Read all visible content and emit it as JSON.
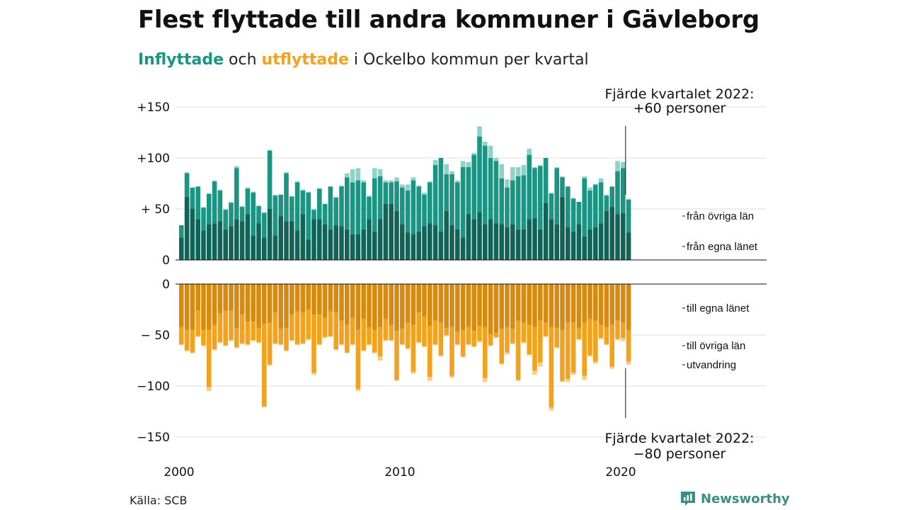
{
  "header": {
    "title": "Flest flyttade till andra kommuner i Gävleborg",
    "subtitle_in": "Inflyttade",
    "subtitle_mid": "och",
    "subtitle_out": "utflyttade",
    "subtitle_rest": "i Ockelbo kommun per kvartal"
  },
  "footer": {
    "source": "Källa: SCB",
    "brand": "Newsworthy"
  },
  "colors": {
    "in_same_county": "#0f6357",
    "in_other_county": "#1a9483",
    "in_immigration": "#8ed2c8",
    "out_same_county": "#d68a10",
    "out_other_county": "#f2a21c",
    "out_emigration": "#f7cd82"
  },
  "chart_data": {
    "type": "bar",
    "start_quarter": "2000 Q1",
    "x_ticks": [
      "2000",
      "2010",
      "2020"
    ],
    "y_ticks_top": [
      "+150",
      "+100",
      "+ 50",
      "0"
    ],
    "y_ticks_bottom": [
      "0",
      "− 50",
      "−100",
      "−150"
    ],
    "ylim_top": [
      0,
      150
    ],
    "ylim_bottom": [
      -150,
      0
    ],
    "top_annotation": {
      "line1": "Fjärde kvartalet 2022:",
      "line2": "+60 personer"
    },
    "bottom_annotation": {
      "line1": "Fjärde kvartalet 2022:",
      "line2": "−80 personer"
    },
    "series_labels": {
      "in_other_county": "från övriga län",
      "in_same_county": "från egna länet",
      "out_same_county": "till egna länet",
      "out_other_county": "till övriga län",
      "out_emigration": "utvandring"
    },
    "inflow_total": [
      34,
      86,
      71,
      72,
      52,
      65,
      78,
      69,
      50,
      57,
      92,
      53,
      71,
      67,
      53,
      47,
      108,
      64,
      64,
      86,
      63,
      77,
      69,
      67,
      50,
      70,
      55,
      72,
      62,
      73,
      85,
      89,
      90,
      78,
      63,
      90,
      89,
      78,
      78,
      81,
      74,
      74,
      81,
      73,
      66,
      77,
      98,
      100,
      94,
      87,
      78,
      97,
      96,
      105,
      131,
      116,
      112,
      100,
      94,
      79,
      91,
      91,
      93,
      109,
      91,
      93,
      100,
      66,
      91,
      82,
      72,
      61,
      57,
      82,
      71,
      74,
      80,
      64,
      72,
      97,
      96,
      60
    ],
    "inflow_other": [
      34,
      85,
      71,
      72,
      51,
      65,
      77,
      68,
      49,
      56,
      90,
      52,
      70,
      66,
      53,
      46,
      107,
      63,
      64,
      85,
      62,
      76,
      68,
      66,
      49,
      70,
      55,
      72,
      61,
      72,
      81,
      76,
      78,
      76,
      62,
      80,
      82,
      76,
      76,
      77,
      71,
      68,
      78,
      72,
      64,
      76,
      93,
      100,
      84,
      84,
      76,
      91,
      91,
      103,
      121,
      112,
      100,
      97,
      80,
      71,
      78,
      82,
      83,
      103,
      90,
      92,
      100,
      65,
      90,
      81,
      72,
      60,
      57,
      80,
      68,
      74,
      76,
      63,
      72,
      87,
      90,
      59
    ],
    "inflow_same": [
      22,
      62,
      50,
      40,
      29,
      35,
      36,
      38,
      30,
      33,
      40,
      38,
      45,
      24,
      36,
      22,
      50,
      24,
      43,
      38,
      38,
      29,
      45,
      20,
      40,
      40,
      35,
      30,
      34,
      33,
      30,
      25,
      25,
      30,
      40,
      28,
      40,
      55,
      55,
      48,
      35,
      27,
      25,
      28,
      33,
      36,
      34,
      28,
      48,
      34,
      30,
      22,
      45,
      40,
      47,
      35,
      40,
      36,
      35,
      32,
      35,
      30,
      30,
      40,
      41,
      30,
      56,
      40,
      35,
      62,
      32,
      28,
      35,
      23,
      30,
      32,
      36,
      48,
      52,
      45,
      46,
      27
    ],
    "outflow_total": [
      -60,
      -66,
      -68,
      -52,
      -61,
      -105,
      -65,
      -58,
      -61,
      -56,
      -63,
      -59,
      -60,
      -56,
      -58,
      -121,
      -80,
      -59,
      -60,
      -66,
      -56,
      -60,
      -59,
      -55,
      -89,
      -60,
      -53,
      -52,
      -65,
      -60,
      -68,
      -60,
      -105,
      -66,
      -60,
      -68,
      -75,
      -56,
      -56,
      -95,
      -60,
      -64,
      -88,
      -58,
      -62,
      -95,
      -60,
      -71,
      -51,
      -92,
      -60,
      -72,
      -60,
      -62,
      -57,
      -96,
      -61,
      -53,
      -79,
      -69,
      -59,
      -95,
      -58,
      -70,
      -89,
      -81,
      -52,
      -124,
      -63,
      -96,
      -96,
      -89,
      -55,
      -94,
      -71,
      -78,
      -54,
      -60,
      -83,
      -55,
      -56,
      -79
    ],
    "outflow_same": [
      -42,
      -45,
      -45,
      -26,
      -45,
      -45,
      -40,
      -29,
      -26,
      -26,
      -43,
      -30,
      -37,
      -37,
      -43,
      -39,
      -38,
      -28,
      -44,
      -43,
      -30,
      -27,
      -28,
      -25,
      -30,
      -30,
      -33,
      -27,
      -28,
      -36,
      -40,
      -33,
      -45,
      -34,
      -42,
      -45,
      -42,
      -34,
      -40,
      -46,
      -44,
      -38,
      -40,
      -28,
      -32,
      -41,
      -36,
      -38,
      -43,
      -42,
      -47,
      -45,
      -42,
      -46,
      -41,
      -42,
      -49,
      -48,
      -44,
      -42,
      -44,
      -36,
      -38,
      -40,
      -42,
      -36,
      -38,
      -42,
      -43,
      -45,
      -38,
      -38,
      -43,
      -38,
      -34,
      -36,
      -40,
      -42,
      -40,
      -36,
      -38,
      -45
    ],
    "outflow_emigration": [
      -1,
      -1,
      -1,
      -1,
      -1,
      -4,
      -1,
      -1,
      -1,
      -1,
      -1,
      -1,
      -1,
      -1,
      -1,
      -1,
      -1,
      -1,
      -1,
      -1,
      -1,
      -1,
      -1,
      -1,
      -2,
      -1,
      -1,
      -1,
      -1,
      -1,
      -1,
      -1,
      -2,
      -1,
      -1,
      -1,
      -4,
      -1,
      -1,
      -1,
      -1,
      -1,
      -2,
      -1,
      -1,
      -4,
      -1,
      -1,
      -1,
      -2,
      -1,
      -1,
      -1,
      -1,
      -1,
      -4,
      -1,
      -1,
      -1,
      -2,
      -1,
      -1,
      -1,
      -1,
      -4,
      -4,
      -1,
      -3,
      -1,
      -1,
      -3,
      -2,
      -1,
      -4,
      -1,
      -2,
      -1,
      -1,
      -2,
      -1,
      -3,
      -3
    ]
  }
}
